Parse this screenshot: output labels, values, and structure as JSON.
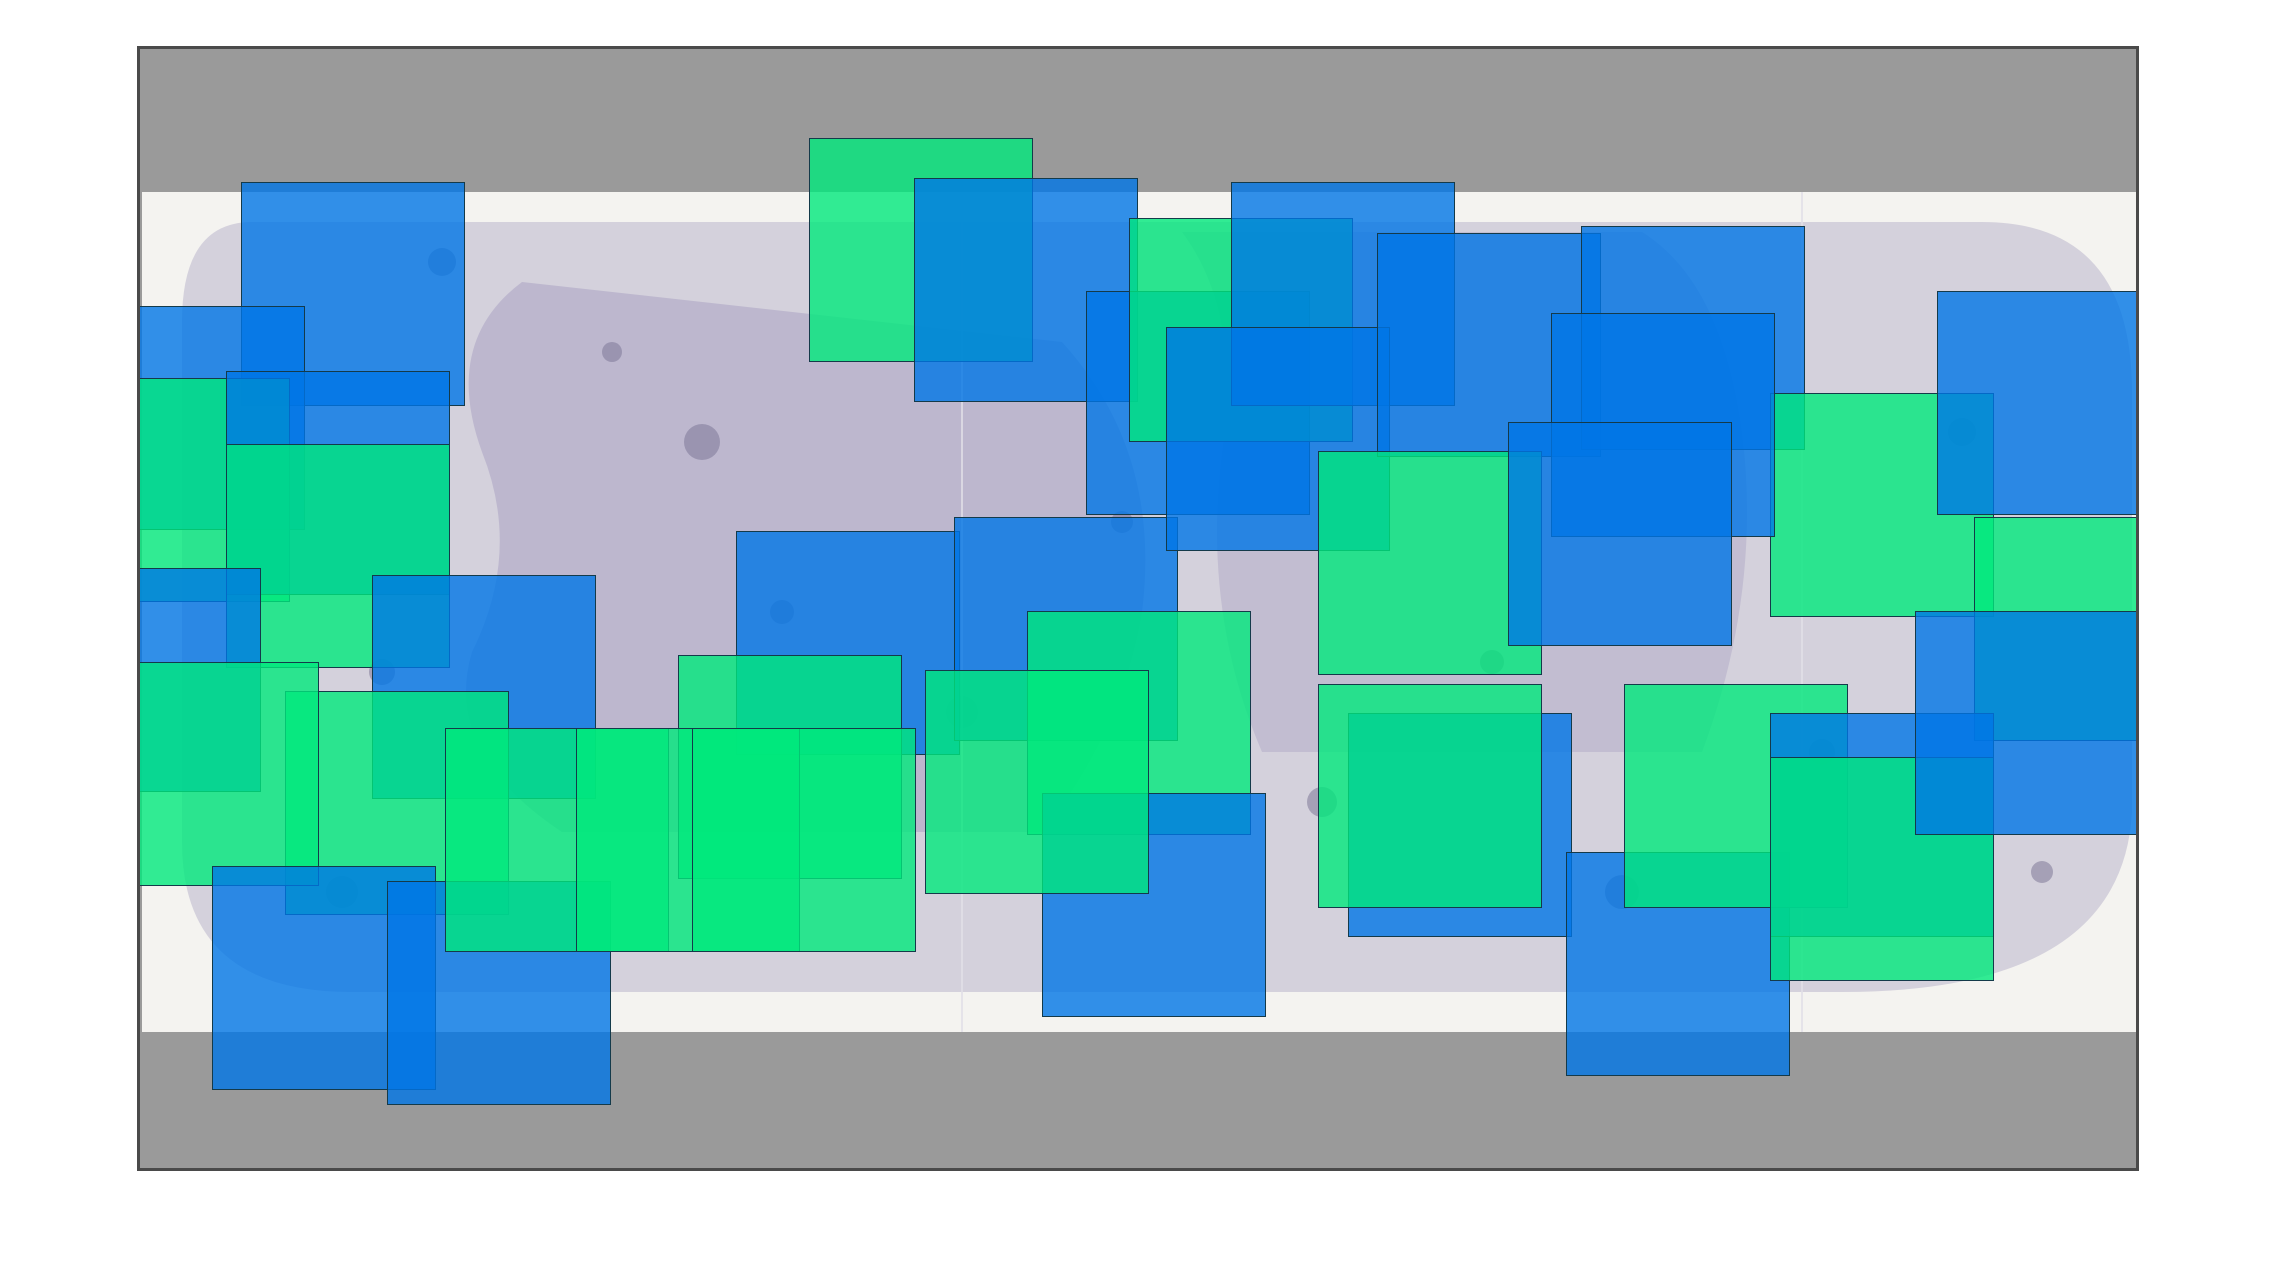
{
  "viewer": {
    "frame_color": "#9a9a9a",
    "border_color": "#4a4a4a",
    "artwork_paper_color": "#f4f3f0",
    "artwork_ink_color": "#8a86a8"
  },
  "overlay": {
    "legend_shown": false,
    "tile_categories": [
      {
        "name": "blue",
        "color": "#0076e6"
      },
      {
        "name": "green",
        "color": "#00e87c"
      }
    ]
  }
}
